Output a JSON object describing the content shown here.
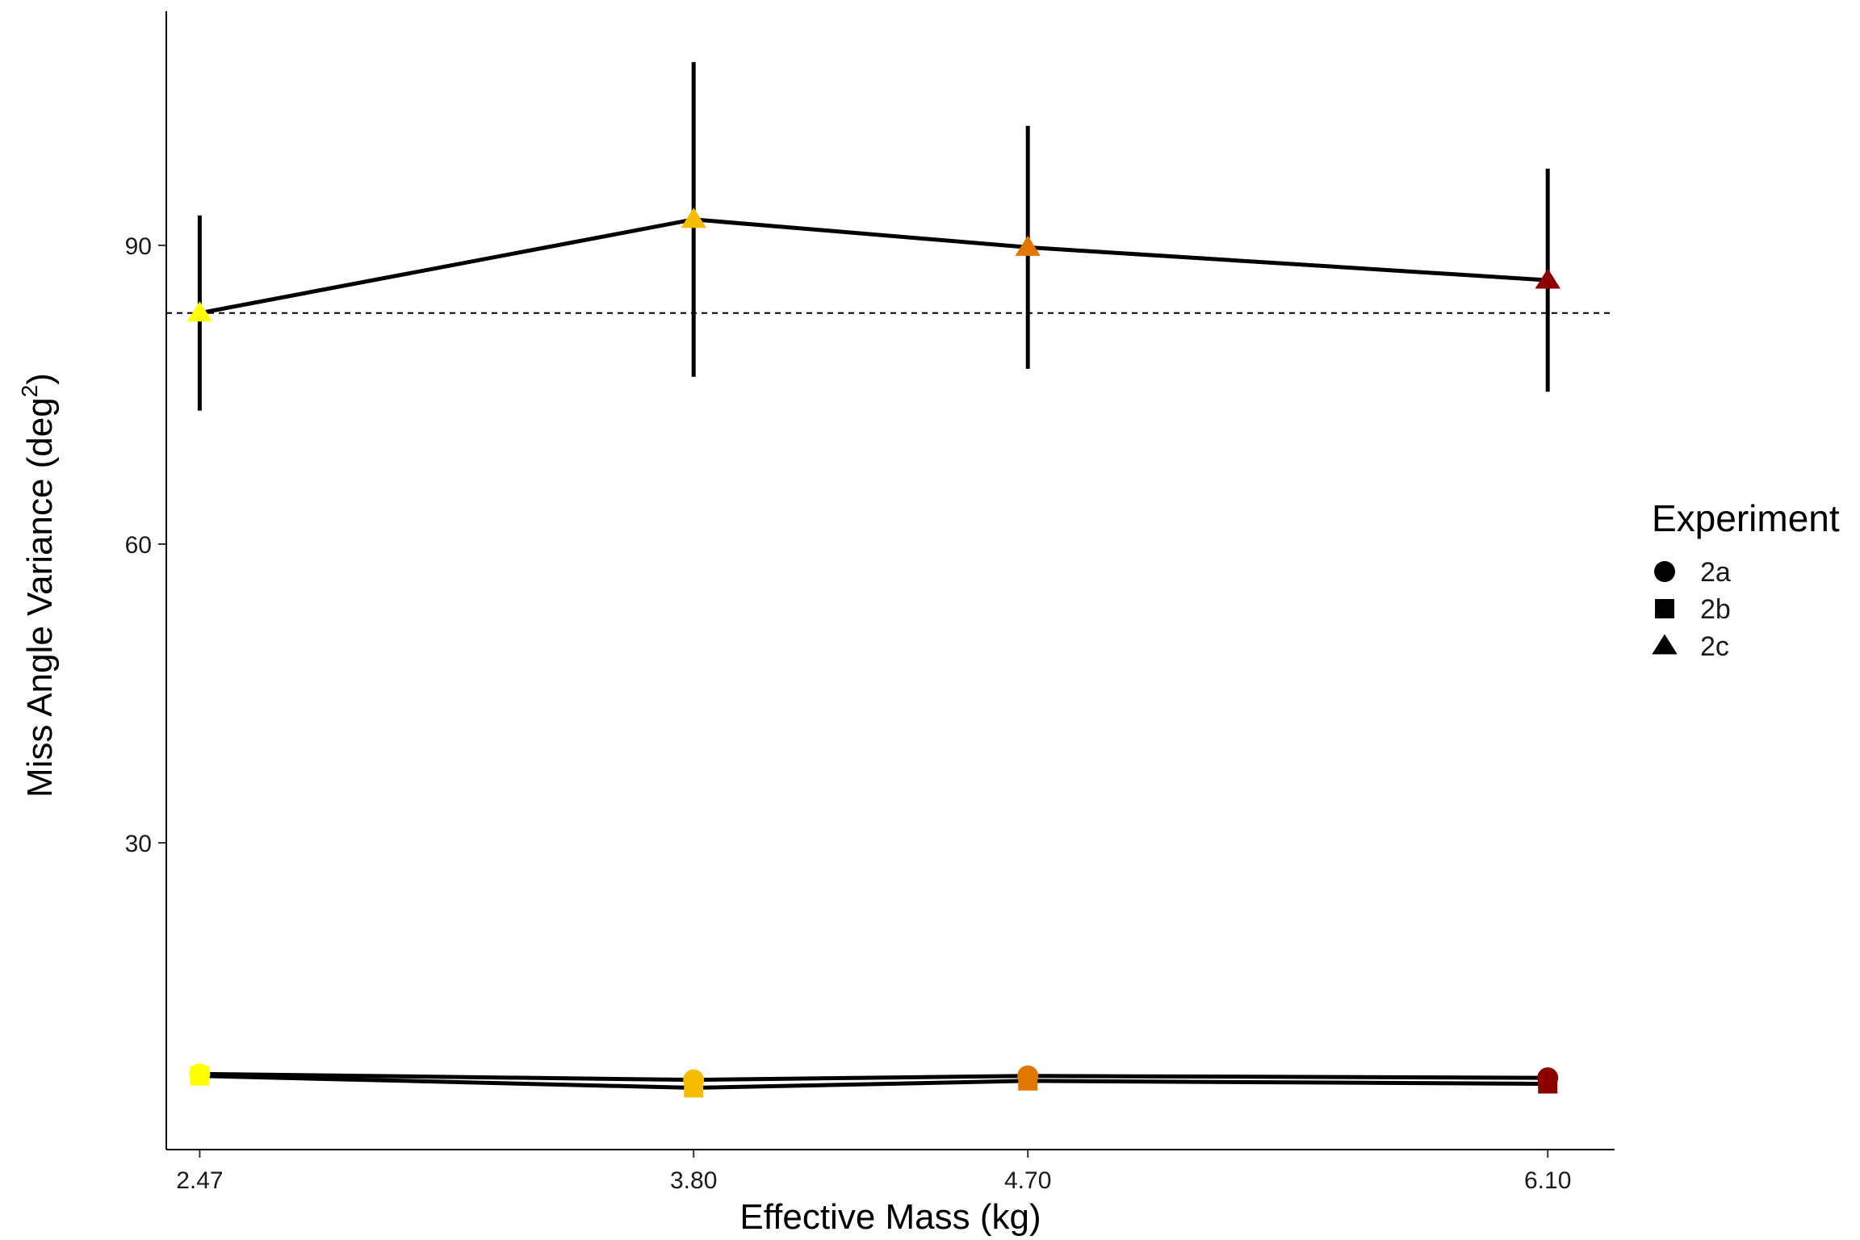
{
  "chart_data": {
    "type": "line",
    "xlabel": "Effective Mass (kg)",
    "ylabel_main": "Miss Angle Variance (deg",
    "ylabel_sup": "2",
    "ylabel_close": ")",
    "x_ticks": [
      2.47,
      3.8,
      4.7,
      6.1
    ],
    "x_tick_labels": [
      "2.47",
      "3.80",
      "4.70",
      "6.10"
    ],
    "y_ticks": [
      30,
      60,
      90
    ],
    "y_tick_labels": [
      "30",
      "60",
      "90"
    ],
    "xlim": [
      2.38,
      6.28
    ],
    "ylim": [
      -0.8,
      113.5
    ],
    "reference_line": {
      "y": 83.2,
      "style": "dashed"
    },
    "grid": false,
    "legend": {
      "title": "Experiment",
      "position": "right",
      "items": [
        {
          "label": "2a",
          "shape": "circle"
        },
        {
          "label": "2b",
          "shape": "square"
        },
        {
          "label": "2c",
          "shape": "triangle"
        }
      ]
    },
    "point_colors": [
      "#ffff00",
      "#f5bc00",
      "#e07800",
      "#8b0000"
    ],
    "series": [
      {
        "name": "2a",
        "shape": "circle",
        "x": [
          2.47,
          3.8,
          4.7,
          6.1
        ],
        "y": [
          6.8,
          6.2,
          6.6,
          6.4
        ],
        "err": [
          0.6,
          0.4,
          0.5,
          0.5
        ]
      },
      {
        "name": "2b",
        "shape": "square",
        "x": [
          2.47,
          3.8,
          4.7,
          6.1
        ],
        "y": [
          6.6,
          5.4,
          6.1,
          5.8
        ],
        "err": [
          0.5,
          0.5,
          0.4,
          0.4
        ]
      },
      {
        "name": "2c",
        "shape": "triangle",
        "x": [
          2.47,
          3.8,
          4.7,
          6.1
        ],
        "y": [
          83.2,
          92.6,
          89.8,
          86.5
        ],
        "err": [
          9.8,
          15.8,
          12.2,
          11.2
        ]
      }
    ]
  }
}
